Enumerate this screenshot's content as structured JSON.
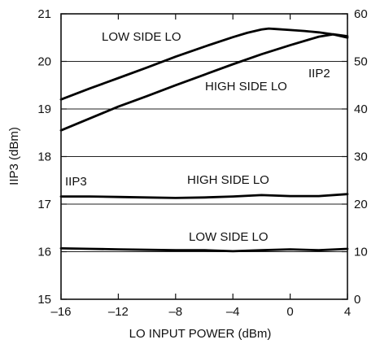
{
  "chart_data": {
    "type": "line",
    "xlabel": "LO INPUT POWER (dBm)",
    "ylabel_left": "IIP3 (dBm)",
    "xlim": [
      -16,
      4
    ],
    "ylim_left": [
      15,
      21
    ],
    "ylim_right": [
      0,
      60
    ],
    "x_ticks": [
      -16,
      -12,
      -8,
      -4,
      0,
      4
    ],
    "x_tick_labels": [
      "–16",
      "–12",
      "–8",
      "–4",
      "0",
      "4"
    ],
    "y_left_ticks": [
      15,
      16,
      17,
      18,
      19,
      20,
      21
    ],
    "y_left_tick_labels": [
      "15",
      "16",
      "17",
      "18",
      "19",
      "20",
      "21"
    ],
    "y_right_ticks": [
      0,
      10,
      20,
      30,
      40,
      50,
      60
    ],
    "y_right_tick_labels": [
      "0",
      "10",
      "20",
      "30",
      "40",
      "50",
      "60"
    ],
    "grid": true,
    "series": [
      {
        "axis": "right",
        "x": [
          -16,
          -14,
          -12,
          -10,
          -8,
          -6,
          -4,
          -3,
          -2,
          -1.5,
          -1,
          0,
          1,
          2,
          3,
          4
        ],
        "values": [
          42,
          44.3,
          46.5,
          48.7,
          51,
          53.1,
          55.1,
          56.0,
          56.7,
          56.9,
          56.8,
          56.6,
          56.4,
          56.1,
          55.7,
          55.0
        ]
      },
      {
        "axis": "right",
        "x": [
          -16,
          -14,
          -12,
          -10,
          -8,
          -6,
          -4,
          -2,
          0,
          2,
          3,
          4
        ],
        "values": [
          35.5,
          38,
          40.5,
          42.7,
          45,
          47.2,
          49.4,
          51.5,
          53.4,
          55.2,
          55.7,
          55.3
        ]
      },
      {
        "axis": "left",
        "x": [
          -16,
          -14,
          -12,
          -10,
          -8,
          -6,
          -4,
          -2,
          0,
          2,
          4
        ],
        "values": [
          17.16,
          17.16,
          17.15,
          17.14,
          17.13,
          17.14,
          17.16,
          17.19,
          17.17,
          17.17,
          17.21
        ]
      },
      {
        "axis": "left",
        "x": [
          -16,
          -14,
          -12,
          -10,
          -8,
          -6,
          -4,
          -2,
          0,
          2,
          4
        ],
        "values": [
          16.07,
          16.06,
          16.05,
          16.04,
          16.03,
          16.03,
          16.01,
          16.03,
          16.05,
          16.03,
          16.06
        ]
      }
    ],
    "annotations": {
      "low_side_upper": "LOW SIDE LO",
      "iip2": "IIP2",
      "high_side_upper": "HIGH SIDE LO",
      "iip3": "IIP3",
      "high_side_lower": "HIGH SIDE LO",
      "low_side_lower": "LOW SIDE LO"
    }
  }
}
